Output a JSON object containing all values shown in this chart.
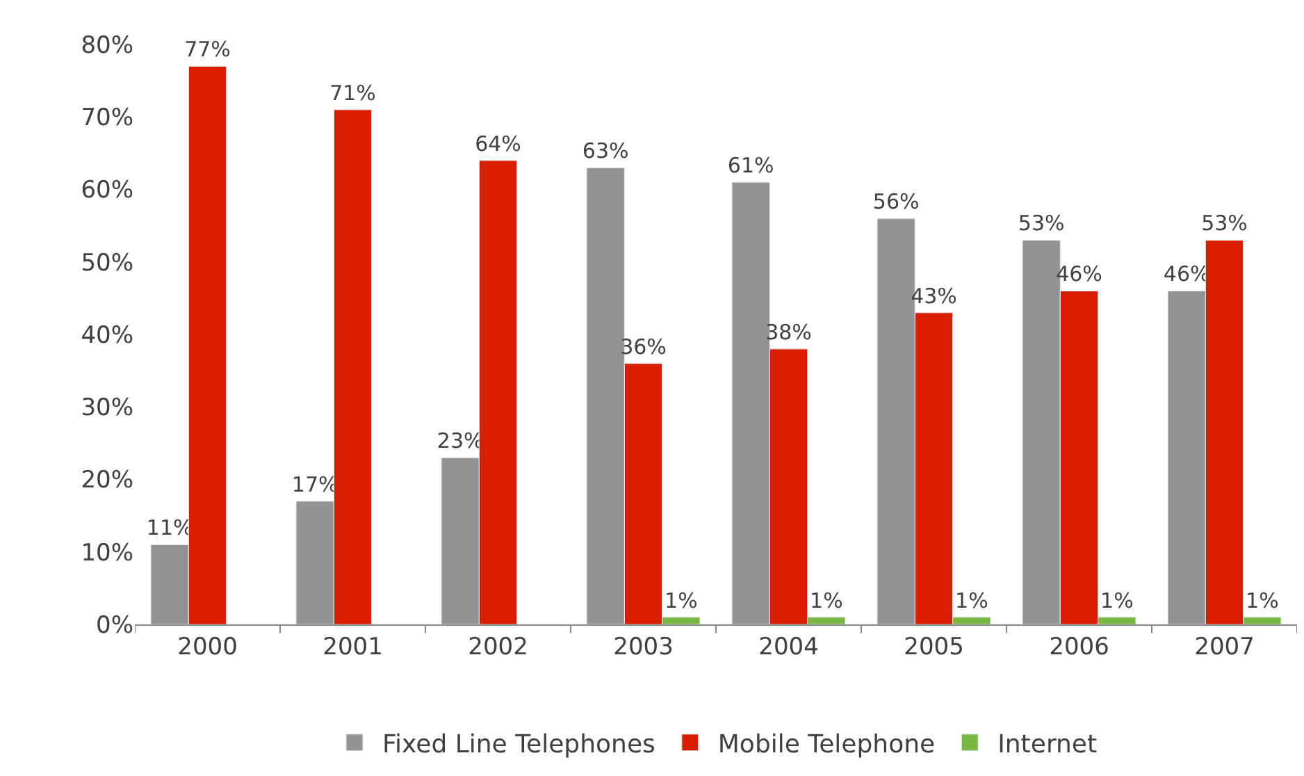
{
  "chart_data": {
    "type": "bar",
    "categories": [
      "2000",
      "2001",
      "2002",
      "2003",
      "2004",
      "2005",
      "2006",
      "2007"
    ],
    "series": [
      {
        "name": "Fixed Line Telephones",
        "color": "#939393",
        "values": [
          11,
          17,
          23,
          63,
          61,
          56,
          53,
          46
        ],
        "value_labels": [
          "11%",
          "17%",
          "23%",
          "63%",
          "61%",
          "56%",
          "53%",
          "46%"
        ]
      },
      {
        "name": "Mobile Telephone",
        "color": "#d91e00",
        "values": [
          77,
          71,
          64,
          36,
          38,
          43,
          46,
          53
        ],
        "value_labels": [
          "77%",
          "71%",
          "64%",
          "36%",
          "38%",
          "43%",
          "46%",
          "53%"
        ]
      },
      {
        "name": "Internet",
        "color": "#77b843",
        "values": [
          null,
          null,
          null,
          1,
          1,
          1,
          1,
          1
        ],
        "value_labels": [
          null,
          null,
          null,
          "1%",
          "1%",
          "1%",
          "1%",
          "1%"
        ]
      }
    ],
    "ylim": [
      0,
      80
    ],
    "yticks": [
      {
        "value": 0,
        "label": "0%"
      },
      {
        "value": 10,
        "label": "10%"
      },
      {
        "value": 20,
        "label": "20%"
      },
      {
        "value": 30,
        "label": "30%"
      },
      {
        "value": 40,
        "label": "40%"
      },
      {
        "value": 50,
        "label": "50%"
      },
      {
        "value": 60,
        "label": "60%"
      },
      {
        "value": 70,
        "label": "70%"
      },
      {
        "value": 80,
        "label": "80%"
      }
    ],
    "legend": "bottom"
  }
}
